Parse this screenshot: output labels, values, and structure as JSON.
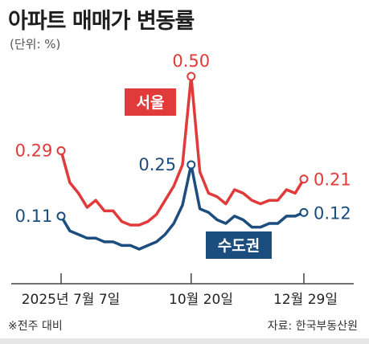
{
  "title": "아파트 매매가 변동률",
  "unit": "(단위: %)",
  "footnote": "※전주 대비",
  "source": "자료: 한국부동산원",
  "colors": {
    "seoul": "#e03a3a",
    "metro": "#1b4d7e",
    "axis": "#444444"
  },
  "chart_data": {
    "type": "line",
    "x_labels": [
      "2025년 7월 7일",
      "10월 20일",
      "12월 29일"
    ],
    "series": [
      {
        "name": "서울",
        "values": [
          0.29,
          0.2,
          0.17,
          0.13,
          0.15,
          0.12,
          0.12,
          0.09,
          0.08,
          0.08,
          0.09,
          0.11,
          0.15,
          0.19,
          0.25,
          0.5,
          0.23,
          0.17,
          0.16,
          0.14,
          0.18,
          0.17,
          0.15,
          0.14,
          0.15,
          0.15,
          0.18,
          0.17,
          0.21
        ],
        "start_label": "0.29",
        "peak_label": "0.50",
        "end_label": "0.21"
      },
      {
        "name": "수도권",
        "values": [
          0.11,
          0.07,
          0.06,
          0.05,
          0.05,
          0.04,
          0.04,
          0.03,
          0.03,
          0.02,
          0.03,
          0.04,
          0.06,
          0.09,
          0.14,
          0.25,
          0.13,
          0.12,
          0.1,
          0.09,
          0.11,
          0.1,
          0.08,
          0.08,
          0.09,
          0.09,
          0.11,
          0.11,
          0.12
        ],
        "start_label": "0.11",
        "peak_label": "0.25",
        "end_label": "0.12"
      }
    ]
  }
}
